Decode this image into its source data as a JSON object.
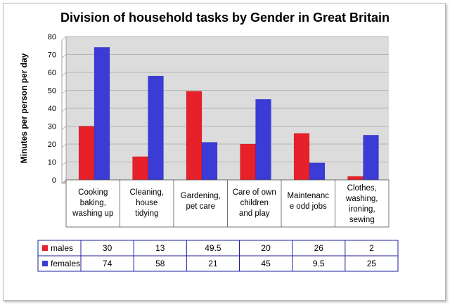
{
  "chart_data": {
    "type": "bar",
    "title": "Division of household tasks by Gender in Great Britain",
    "xlabel": "",
    "ylabel": "Minutes per person per day",
    "ylim": [
      0,
      80
    ],
    "yticks": [
      0,
      10,
      20,
      30,
      40,
      50,
      60,
      70,
      80
    ],
    "grid": true,
    "legend": "data-table",
    "categories": [
      [
        "Cooking",
        "baking,",
        "washing up"
      ],
      [
        "Cleaning,",
        "house",
        "tidying"
      ],
      [
        "Gardening,",
        "pet care"
      ],
      [
        "Care of own",
        "children",
        "and play"
      ],
      [
        "Maintenanc",
        "e odd jobs"
      ],
      [
        "Clothes,",
        "washing,",
        "ironing,",
        "sewing"
      ]
    ],
    "series": [
      {
        "name": "males",
        "color": "#e8202a",
        "values": [
          30,
          13,
          49.5,
          20,
          26,
          2
        ]
      },
      {
        "name": "females",
        "color": "#3b3bd6",
        "values": [
          74,
          58,
          21,
          45,
          9.5,
          25
        ]
      }
    ]
  }
}
